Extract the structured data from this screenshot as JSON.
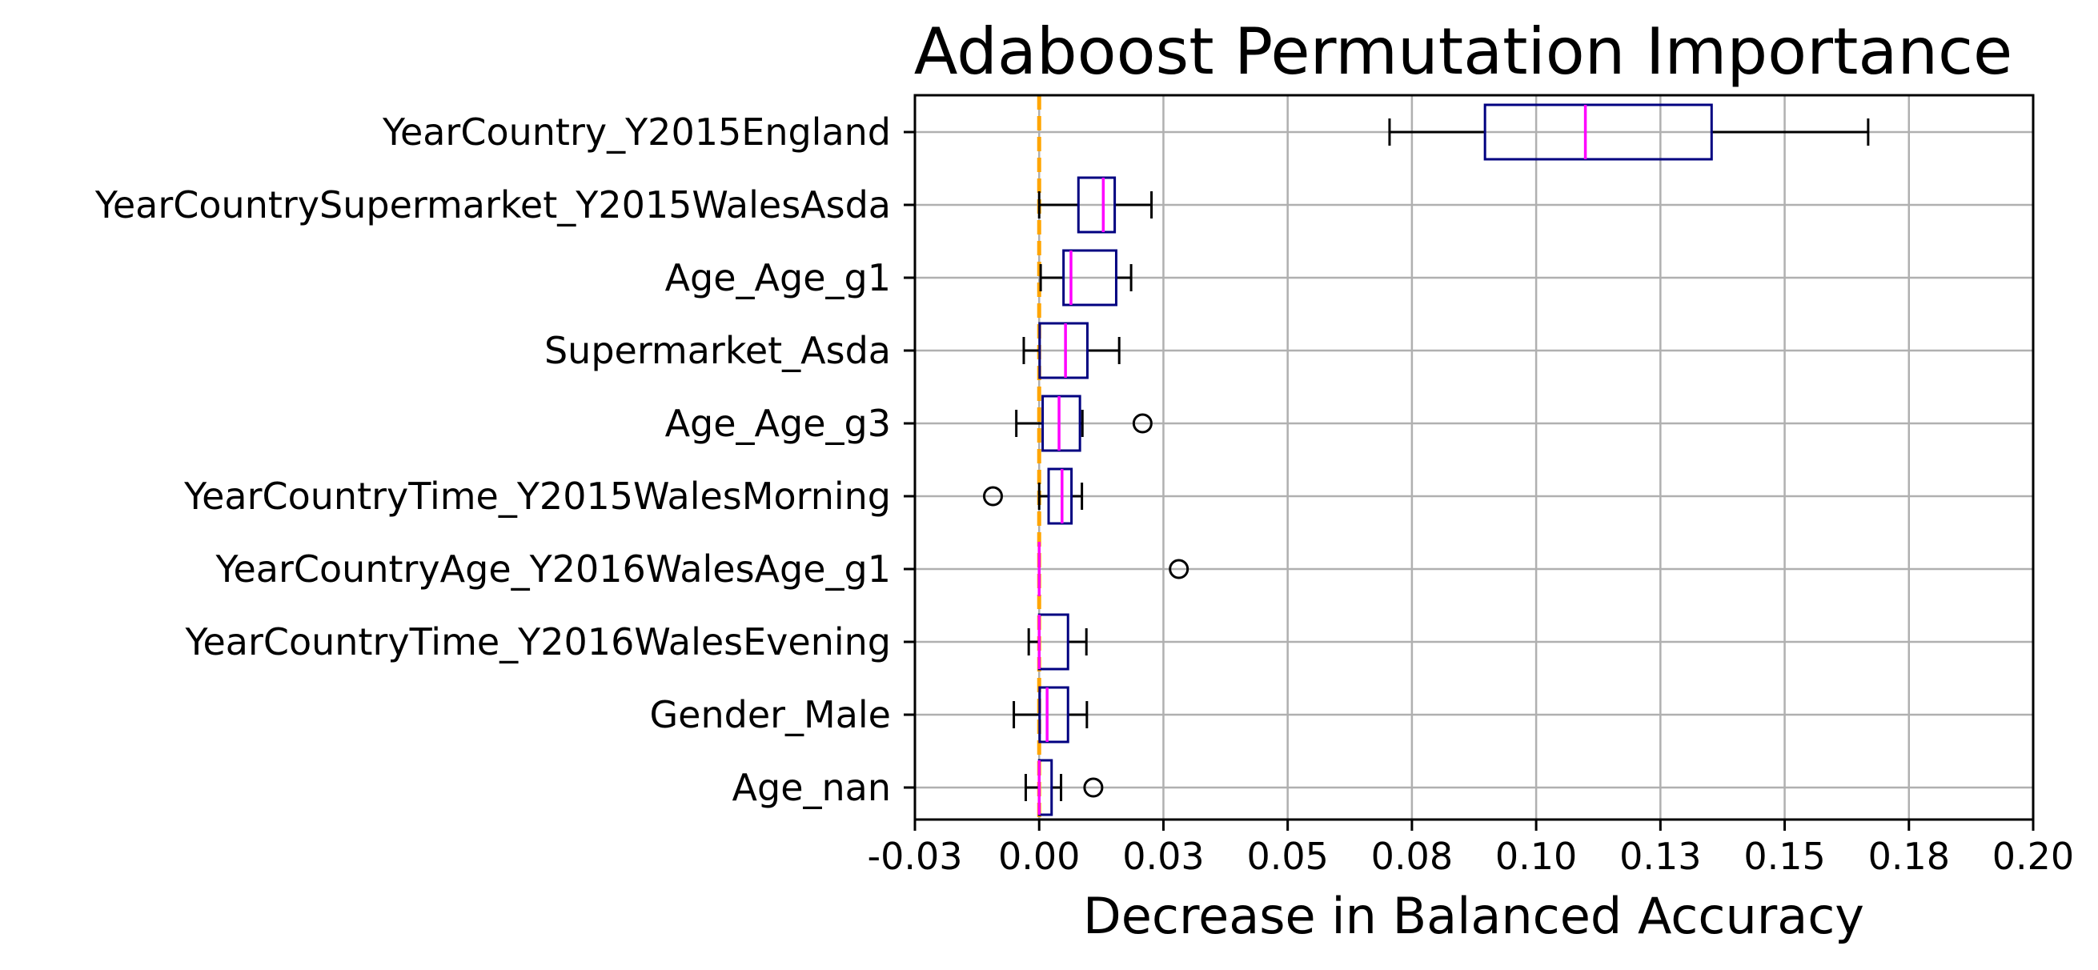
{
  "chart_data": {
    "type": "boxplot",
    "orientation": "horizontal",
    "title": "Adaboost Permutation Importance",
    "xlabel": "Decrease in Balanced Accuracy",
    "ylabel": "",
    "xlim": [
      -0.025,
      0.2
    ],
    "xticks": [
      -0.025,
      0.0,
      0.025,
      0.05,
      0.075,
      0.1,
      0.125,
      0.15,
      0.175,
      0.2
    ],
    "xtick_labels": [
      "-0.03",
      "0.00",
      "0.03",
      "0.05",
      "0.08",
      "0.10",
      "0.13",
      "0.15",
      "0.18",
      "0.20"
    ],
    "grid": true,
    "reference_line": {
      "x": 0.0,
      "style": "dashed",
      "color": "#ffa500"
    },
    "colors": {
      "box": "#000080",
      "median": "#ff00ff",
      "whisker": "#000000",
      "grid": "#b0b0b0"
    },
    "categories": [
      "YearCountry_Y2015England",
      "YearCountrySupermarket_Y2015WalesAsda",
      "Age_Age_g1",
      "Supermarket_Asda",
      "Age_Age_g3",
      "YearCountryTime_Y2015WalesMorning",
      "YearCountryAge_Y2016WalesAge_g1",
      "YearCountryTime_Y2016WalesEvening",
      "Gender_Male",
      "Age_nan"
    ],
    "boxes": [
      {
        "whislo": 0.0705,
        "q1": 0.0897,
        "med": 0.1099,
        "q3": 0.1353,
        "whishi": 0.1668,
        "fliers": []
      },
      {
        "whislo": 0.0,
        "q1": 0.0079,
        "med": 0.0129,
        "q3": 0.0152,
        "whishi": 0.0226,
        "fliers": []
      },
      {
        "whislo": 0.0003,
        "q1": 0.0049,
        "med": 0.0064,
        "q3": 0.0155,
        "whishi": 0.0185,
        "fliers": []
      },
      {
        "whislo": -0.0031,
        "q1": 0.0001,
        "med": 0.0053,
        "q3": 0.0097,
        "whishi": 0.0161,
        "fliers": []
      },
      {
        "whislo": -0.0046,
        "q1": 0.0007,
        "med": 0.004,
        "q3": 0.0082,
        "whishi": 0.0087,
        "fliers": [
          0.0208
        ]
      },
      {
        "whislo": 0.0,
        "q1": 0.0019,
        "med": 0.0046,
        "q3": 0.0065,
        "whishi": 0.0086,
        "fliers": [
          -0.0093
        ]
      },
      {
        "whislo": 0.0,
        "q1": 0.0,
        "med": 0.0,
        "q3": 0.0,
        "whishi": 0.0,
        "fliers": [
          0.0281
        ]
      },
      {
        "whislo": -0.0021,
        "q1": 0.0,
        "med": 0.0,
        "q3": 0.0058,
        "whishi": 0.0095,
        "fliers": []
      },
      {
        "whislo": -0.0051,
        "q1": 0.0001,
        "med": 0.0016,
        "q3": 0.0058,
        "whishi": 0.0096,
        "fliers": []
      },
      {
        "whislo": -0.0027,
        "q1": 0.0,
        "med": 0.0,
        "q3": 0.0025,
        "whishi": 0.0044,
        "fliers": [
          0.0109
        ]
      }
    ]
  }
}
